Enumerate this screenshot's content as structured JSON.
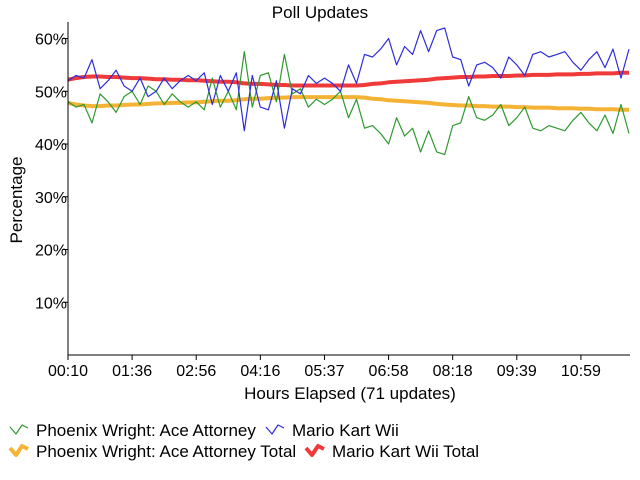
{
  "chart_data": {
    "type": "line",
    "title": "Poll Updates",
    "xlabel": "Hours Elapsed (71 updates)",
    "ylabel": "Percentage",
    "x_tick_labels": [
      "00:10",
      "01:36",
      "02:56",
      "04:16",
      "05:37",
      "06:58",
      "08:18",
      "09:39",
      "10:59"
    ],
    "x_tick_index": [
      0,
      8,
      16,
      24,
      32,
      40,
      48,
      56,
      64
    ],
    "y_ticks": [
      10,
      20,
      30,
      40,
      50,
      60
    ],
    "y_tick_labels": [
      "10%",
      "20%",
      "30%",
      "40%",
      "50%",
      "60%"
    ],
    "ylim": [
      0,
      62
    ],
    "grid": false,
    "legend_position": "bottom",
    "series": [
      {
        "name": "Phoenix Wright: Ace Attorney",
        "color": "#2e9a2e",
        "style": "thin",
        "values": [
          48,
          47,
          47.5,
          44,
          49.5,
          48,
          46,
          49,
          50,
          47.5,
          51,
          50,
          47.5,
          49.5,
          48,
          47,
          48,
          46.5,
          52.5,
          47,
          50,
          46.5,
          57.5,
          47,
          53,
          53.5,
          48,
          57,
          49.5,
          50.5,
          47,
          48.5,
          47.5,
          48.5,
          50,
          45,
          48.5,
          43,
          43.5,
          42,
          40,
          45,
          41.5,
          43,
          38.5,
          42.5,
          38.5,
          38,
          43.5,
          44,
          49,
          45,
          44.5,
          45.5,
          47.5,
          43.5,
          45,
          47,
          43,
          42.5,
          43.5,
          43,
          42.5,
          44.5,
          46,
          44,
          42.5,
          45.5,
          42,
          47.5,
          42
        ]
      },
      {
        "name": "Mario Kart Wii",
        "color": "#2d2ddc",
        "style": "thin",
        "values": [
          52,
          53,
          52.5,
          56,
          50.5,
          52,
          54,
          51,
          50,
          52.5,
          49,
          50,
          52.5,
          50.5,
          52,
          53,
          52,
          53.5,
          47.5,
          53,
          50,
          53.5,
          42.5,
          53,
          47,
          46.5,
          52,
          43,
          50.5,
          49.5,
          53,
          51.5,
          52.5,
          51.5,
          50,
          55,
          51.5,
          57,
          56.5,
          58,
          60,
          55,
          58.5,
          57,
          61.5,
          57.5,
          61.5,
          62,
          56.5,
          56,
          51,
          55,
          55.5,
          54.5,
          52.5,
          56.5,
          55,
          53,
          57,
          57.5,
          56.5,
          57,
          57.5,
          55.5,
          54,
          56,
          57.5,
          54.5,
          58,
          52.5,
          58
        ]
      },
      {
        "name": "Phoenix Wright: Ace Attorney Total",
        "color": "#f5b335",
        "style": "thick",
        "values": [
          47.8,
          47.5,
          47.3,
          47.2,
          47.2,
          47.3,
          47.3,
          47.4,
          47.5,
          47.5,
          47.6,
          47.7,
          47.7,
          47.8,
          47.8,
          47.9,
          47.9,
          48.0,
          48.1,
          48.2,
          48.2,
          48.3,
          48.5,
          48.6,
          48.6,
          48.7,
          48.8,
          48.8,
          48.9,
          48.9,
          48.9,
          48.9,
          48.9,
          48.9,
          48.9,
          48.9,
          48.9,
          48.8,
          48.6,
          48.5,
          48.3,
          48.2,
          48.1,
          48.0,
          47.9,
          47.8,
          47.6,
          47.5,
          47.4,
          47.3,
          47.3,
          47.2,
          47.2,
          47.1,
          47.1,
          47.1,
          47.0,
          47.0,
          46.9,
          46.9,
          46.9,
          46.8,
          46.8,
          46.8,
          46.7,
          46.7,
          46.6,
          46.6,
          46.6,
          46.5,
          46.5
        ]
      },
      {
        "name": "Mario Kart Wii Total",
        "color": "#f03a3a",
        "style": "thick",
        "values": [
          52.2,
          52.5,
          52.7,
          52.8,
          52.8,
          52.7,
          52.7,
          52.6,
          52.5,
          52.5,
          52.4,
          52.3,
          52.3,
          52.2,
          52.2,
          52.1,
          52.1,
          52.0,
          51.9,
          51.8,
          51.8,
          51.7,
          51.5,
          51.4,
          51.4,
          51.3,
          51.2,
          51.2,
          51.1,
          51.1,
          51.1,
          51.1,
          51.1,
          51.1,
          51.1,
          51.1,
          51.1,
          51.2,
          51.4,
          51.5,
          51.7,
          51.8,
          51.9,
          52.0,
          52.1,
          52.2,
          52.4,
          52.5,
          52.6,
          52.7,
          52.7,
          52.8,
          52.8,
          52.9,
          52.9,
          52.9,
          53.0,
          53.0,
          53.1,
          53.1,
          53.1,
          53.2,
          53.2,
          53.2,
          53.3,
          53.3,
          53.4,
          53.4,
          53.4,
          53.5,
          53.5
        ]
      }
    ]
  }
}
